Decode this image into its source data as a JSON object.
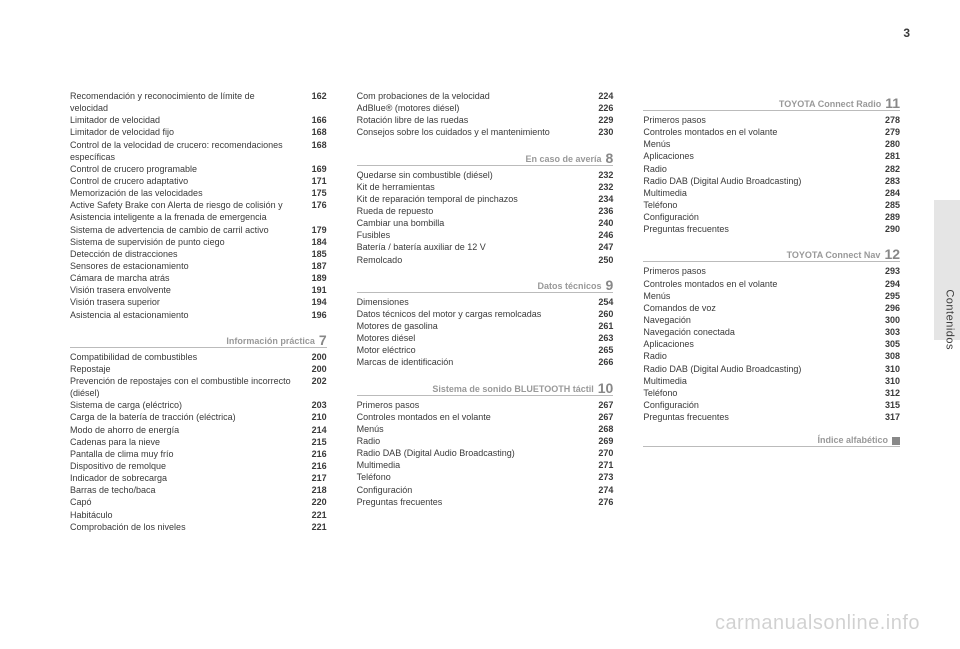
{
  "page_number": "3",
  "side_label": "Contenidos",
  "watermark": "carmanualsonline.info",
  "columns": [
    {
      "sections": [
        {
          "items": [
            {
              "label": "Recomendación y reconocimiento de límite de velocidad",
              "page": "162"
            },
            {
              "label": "Limitador de velocidad",
              "page": "166"
            },
            {
              "label": "Limitador de velocidad fijo",
              "page": "168"
            },
            {
              "label": "Control de la velocidad de crucero: recomendaciones específicas",
              "page": "168"
            },
            {
              "label": "Control de crucero programable",
              "page": "169"
            },
            {
              "label": "Control de crucero adaptativo",
              "page": "171"
            },
            {
              "label": "Memorización de las velocidades",
              "page": "175"
            },
            {
              "label": "Active Safety Brake con Alerta de riesgo de colisión y Asistencia inteligente a la frenada de emergencia",
              "page": "176"
            },
            {
              "label": "Sistema de advertencia de cambio de carril activo",
              "page": "179"
            },
            {
              "label": "Sistema de supervisión de punto ciego",
              "page": "184"
            },
            {
              "label": "Detección de distracciones",
              "page": "185"
            },
            {
              "label": "Sensores de estacionamiento",
              "page": "187"
            },
            {
              "label": "Cámara de marcha atrás",
              "page": "189"
            },
            {
              "label": "Visión trasera envolvente",
              "page": "191"
            },
            {
              "label": "Visión trasera superior",
              "page": "194"
            },
            {
              "label": "Asistencia al estacionamiento",
              "page": "196"
            }
          ]
        },
        {
          "title": "Información práctica",
          "num": "7",
          "items": [
            {
              "label": "Compatibilidad de combustibles",
              "page": "200"
            },
            {
              "label": "Repostaje",
              "page": "200"
            },
            {
              "label": "Prevención de repostajes con el combustible incorrecto (diésel)",
              "page": "202"
            },
            {
              "label": "Sistema de carga (eléctrico)",
              "page": "203"
            },
            {
              "label": "Carga de la batería de tracción (eléctrica)",
              "page": "210"
            },
            {
              "label": "Modo de ahorro de energía",
              "page": "214"
            },
            {
              "label": "Cadenas para la nieve",
              "page": "215"
            },
            {
              "label": "Pantalla de clima muy frío",
              "page": "216"
            },
            {
              "label": "Dispositivo de remolque",
              "page": "216"
            },
            {
              "label": "Indicador de sobrecarga",
              "page": "217"
            },
            {
              "label": "Barras de techo/baca",
              "page": "218"
            },
            {
              "label": "Capó",
              "page": "220"
            },
            {
              "label": "Habitáculo",
              "page": "221"
            },
            {
              "label": "Comprobación de los niveles",
              "page": "221"
            }
          ]
        }
      ]
    },
    {
      "sections": [
        {
          "items": [
            {
              "label": "Com probaciones de la velocidad",
              "page": "224"
            },
            {
              "label": "AdBlue® (motores diésel)",
              "page": "226"
            },
            {
              "label": "Rotación libre de las ruedas",
              "page": "229"
            },
            {
              "label": "Consejos sobre los cuidados y el mantenimiento",
              "page": "230"
            }
          ]
        },
        {
          "title": "En caso de avería",
          "num": "8",
          "items": [
            {
              "label": "Quedarse sin combustible (diésel)",
              "page": "232"
            },
            {
              "label": "Kit de herramientas",
              "page": "232"
            },
            {
              "label": "Kit de reparación temporal de pinchazos",
              "page": "234"
            },
            {
              "label": "Rueda de repuesto",
              "page": "236"
            },
            {
              "label": "Cambiar una bombilla",
              "page": "240"
            },
            {
              "label": "Fusibles",
              "page": "246"
            },
            {
              "label": "Batería / batería auxiliar de 12 V",
              "page": "247"
            },
            {
              "label": "Remolcado",
              "page": "250"
            }
          ]
        },
        {
          "title": "Datos técnicos",
          "num": "9",
          "items": [
            {
              "label": "Dimensiones",
              "page": "254"
            },
            {
              "label": "Datos técnicos del motor y cargas remolcadas",
              "page": "260"
            },
            {
              "label": "Motores de gasolina",
              "page": "261"
            },
            {
              "label": "Motores diésel",
              "page": "263"
            },
            {
              "label": "Motor eléctrico",
              "page": "265"
            },
            {
              "label": "Marcas de identificación",
              "page": "266"
            }
          ]
        },
        {
          "title": "Sistema de sonido BLUETOOTH táctil",
          "num": "10",
          "items": [
            {
              "label": "Primeros pasos",
              "page": "267"
            },
            {
              "label": "Controles montados en el volante",
              "page": "267"
            },
            {
              "label": "Menús",
              "page": "268"
            },
            {
              "label": "Radio",
              "page": "269"
            },
            {
              "label": "Radio DAB (Digital Audio Broadcasting)",
              "page": "270"
            },
            {
              "label": "Multimedia",
              "page": "271"
            },
            {
              "label": "Teléfono",
              "page": "273"
            },
            {
              "label": "Configuración",
              "page": "274"
            },
            {
              "label": "Preguntas frecuentes",
              "page": "276"
            }
          ]
        }
      ]
    },
    {
      "sections": [
        {
          "title": "TOYOTA Connect Radio",
          "num": "11",
          "items": [
            {
              "label": "Primeros pasos",
              "page": "278"
            },
            {
              "label": "Controles montados en el volante",
              "page": "279"
            },
            {
              "label": "Menús",
              "page": "280"
            },
            {
              "label": "Aplicaciones",
              "page": "281"
            },
            {
              "label": "Radio",
              "page": "282"
            },
            {
              "label": "Radio DAB (Digital Audio Broadcasting)",
              "page": "283"
            },
            {
              "label": "Multimedia",
              "page": "284"
            },
            {
              "label": "Teléfono",
              "page": "285"
            },
            {
              "label": "Configuración",
              "page": "289"
            },
            {
              "label": "Preguntas frecuentes",
              "page": "290"
            }
          ]
        },
        {
          "title": "TOYOTA Connect Nav",
          "num": "12",
          "items": [
            {
              "label": "Primeros pasos",
              "page": "293"
            },
            {
              "label": "Controles montados en el volante",
              "page": "294"
            },
            {
              "label": "Menús",
              "page": "295"
            },
            {
              "label": "Comandos de voz",
              "page": "296"
            },
            {
              "label": "Navegación",
              "page": "300"
            },
            {
              "label": "Navegación conectada",
              "page": "303"
            },
            {
              "label": "Aplicaciones",
              "page": "305"
            },
            {
              "label": "Radio",
              "page": "308"
            },
            {
              "label": "Radio DAB (Digital Audio Broadcasting)",
              "page": "310"
            },
            {
              "label": "Multimedia",
              "page": "310"
            },
            {
              "label": "Teléfono",
              "page": "312"
            },
            {
              "label": "Configuración",
              "page": "315"
            },
            {
              "label": "Preguntas frecuentes",
              "page": "317"
            }
          ]
        },
        {
          "index_title": "Índice alfabético"
        }
      ]
    }
  ]
}
